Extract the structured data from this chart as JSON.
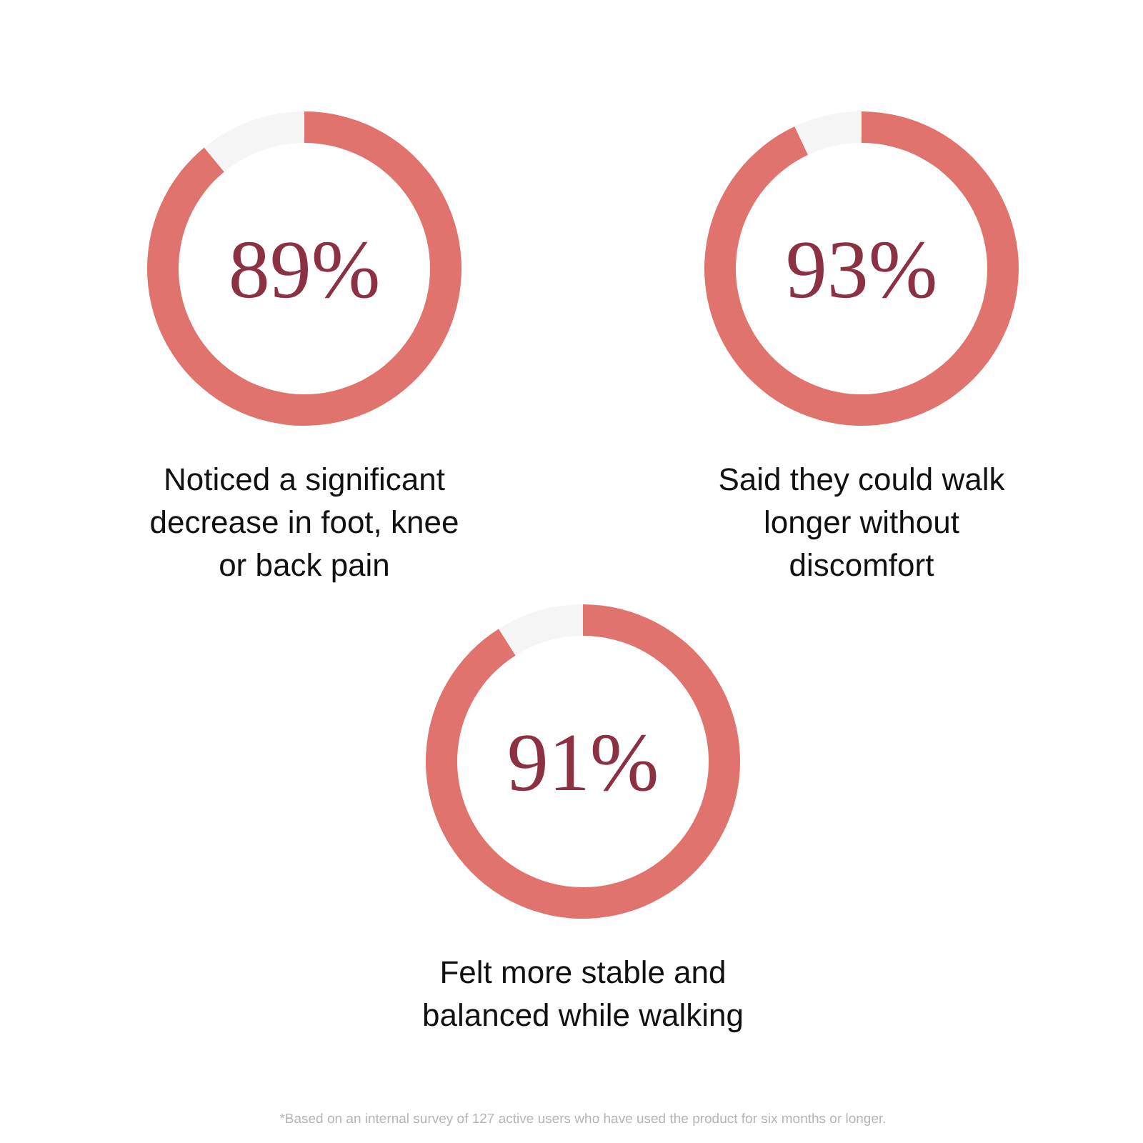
{
  "chart_data": [
    {
      "type": "donut",
      "categories": [
        null,
        null
      ],
      "values": [
        89,
        11
      ],
      "colors": [
        "#e0736e",
        "#f5f5f5"
      ],
      "value_labels": [
        "89%",
        null
      ],
      "xlabel": "Noticed a significant decrease in foot, knee or back pain"
    },
    {
      "type": "donut",
      "categories": [
        null,
        null
      ],
      "values": [
        93,
        7
      ],
      "colors": [
        "#e0736e",
        "#f5f5f5"
      ],
      "value_labels": [
        "93%",
        null
      ],
      "xlabel": "Said they could walk longer without discomfort"
    },
    {
      "type": "donut",
      "categories": [
        null,
        null
      ],
      "values": [
        91,
        9
      ],
      "colors": [
        "#e0736e",
        "#f5f5f5"
      ],
      "value_labels": [
        "91%",
        null
      ],
      "xlabel": "Felt more stable and balanced while walking",
      "annotations": [
        "*Based on an internal survey of 127 active users who have used the product for six months or longer."
      ]
    }
  ]
}
